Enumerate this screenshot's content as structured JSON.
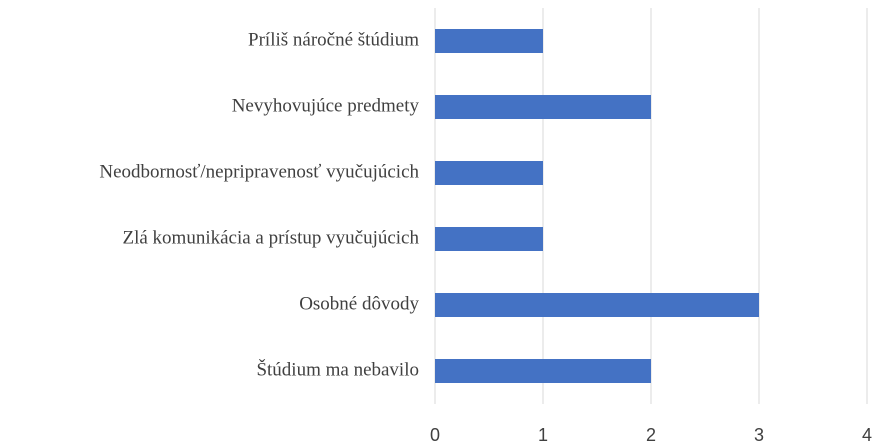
{
  "chart_data": {
    "type": "bar",
    "categories": [
      "Príliš náročné štúdium",
      "Nevyhovujúce predmety",
      "Neodbornosť/nepripravenosť vyučujúcich",
      "Zlá komunikácia a prístup vyučujúcich",
      "Osobné dôvody",
      "Štúdium ma nebavilo"
    ],
    "values": [
      1,
      2,
      1,
      1,
      3,
      2
    ],
    "color": "#4472c4",
    "xlim": [
      0,
      4
    ],
    "xticks": [
      0,
      1,
      2,
      3,
      4
    ],
    "grid": true
  }
}
